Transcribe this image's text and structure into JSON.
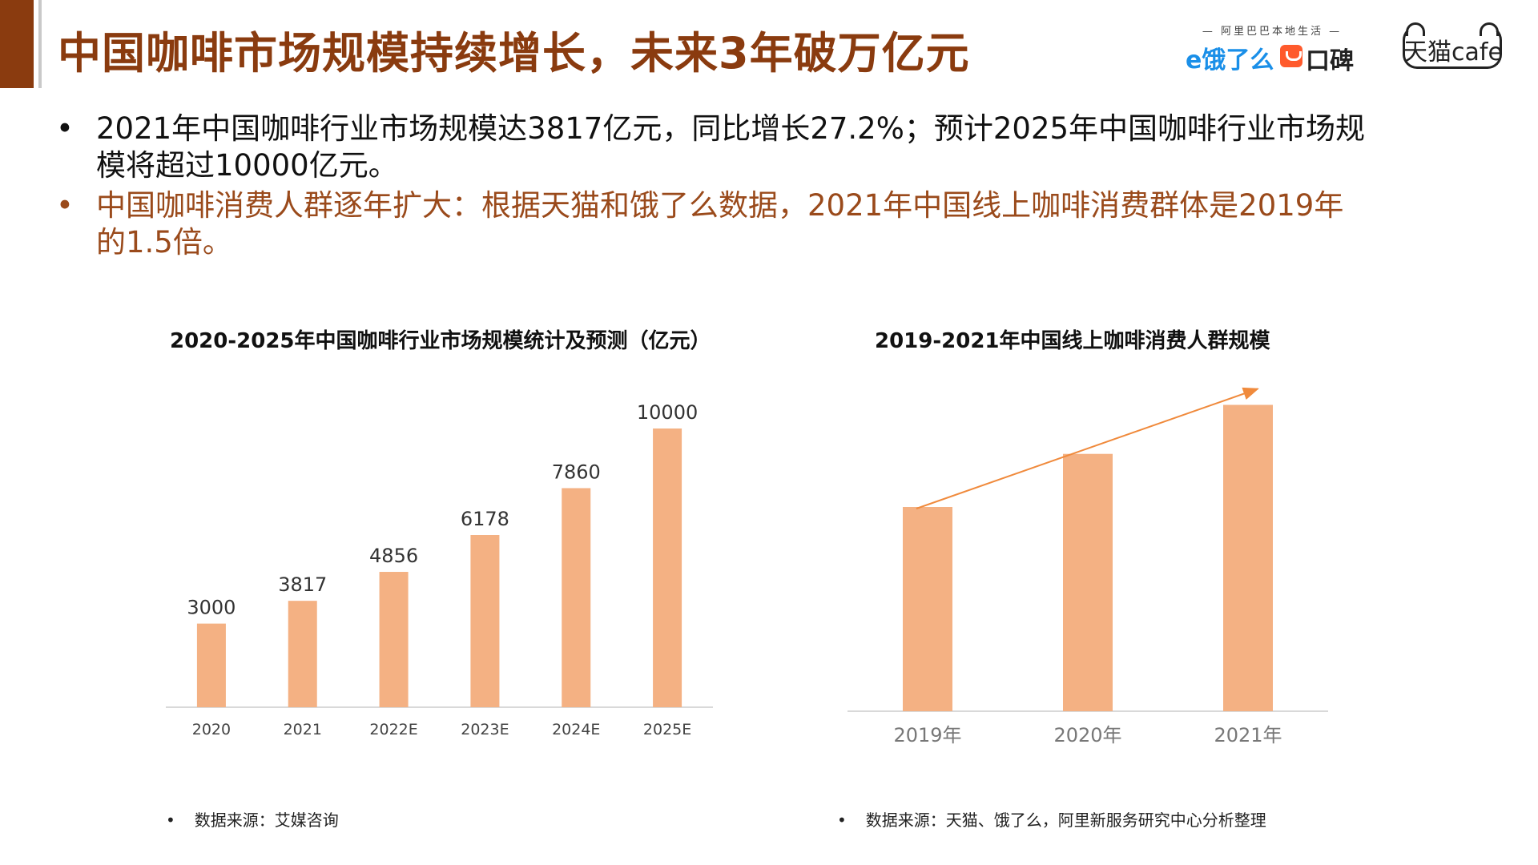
{
  "header": {
    "title": "中国咖啡市场规模持续增长，未来3年破万亿元",
    "logos": {
      "group_tagline": "阿里巴巴本地生活",
      "eleme": "饿了么",
      "eleme_prefix": "e",
      "koubei": "口碑",
      "tmall": "天猫cafe"
    }
  },
  "bullets": [
    {
      "symbol": "•",
      "text": "2021年中国咖啡行业市场规模达3817亿元，同比增长27.2%；预计2025年中国咖啡行业市场规模将超过10000亿元。"
    },
    {
      "symbol": "•",
      "text": "中国咖啡消费人群逐年扩大：根据天猫和饿了么数据，2021年中国线上咖啡消费群体是2019年的1.5倍。"
    }
  ],
  "colors": {
    "accent": "#8a3b0f",
    "bar": "#f4b183",
    "trend_arrow": "#f08a3c",
    "bullet2": "#9a4a1b"
  },
  "chart_data": [
    {
      "type": "bar",
      "title": "2020-2025年中国咖啡行业市场规模统计及预测（亿元）",
      "categories": [
        "2020",
        "2021",
        "2022E",
        "2023E",
        "2024E",
        "2025E"
      ],
      "values": [
        3000,
        3817,
        4856,
        6178,
        7860,
        10000
      ],
      "data_labels": true,
      "ylim": [
        0,
        10000
      ],
      "grid": false,
      "source": "数据来源：艾媒咨询"
    },
    {
      "type": "bar",
      "title": "2019-2021年中国线上咖啡消费人群规模",
      "categories": [
        "2019年",
        "2020年",
        "2021年"
      ],
      "values": [
        1.0,
        1.26,
        1.5
      ],
      "data_labels": false,
      "trend_arrow": true,
      "ylim": [
        0,
        1.6
      ],
      "grid": false,
      "source": "数据来源：天猫、饿了么，阿里新服务研究中心分析整理"
    }
  ]
}
